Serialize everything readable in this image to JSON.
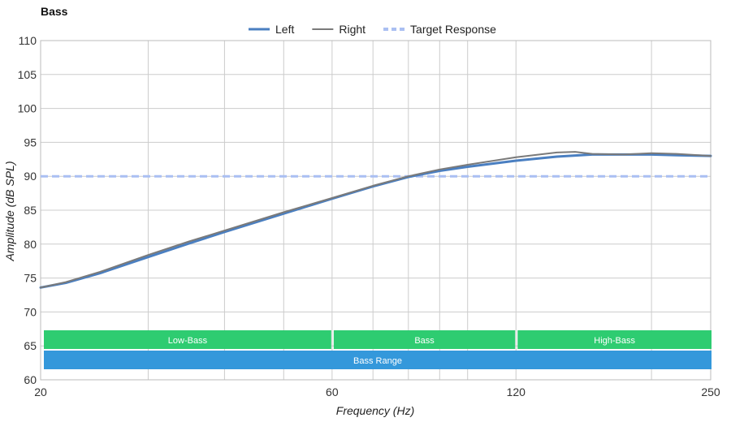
{
  "chart_data": {
    "type": "line",
    "title": "Bass",
    "xlabel": "Frequency (Hz)",
    "ylabel": "Amplitude (dB SPL)",
    "x_scale": "log",
    "xlim": [
      20,
      250
    ],
    "ylim": [
      60,
      110
    ],
    "x_ticks": [
      20,
      60,
      120,
      250
    ],
    "x_tick_labels": [
      "20",
      "60",
      "120",
      "250"
    ],
    "x_minor_gridlines": [
      30,
      40,
      50,
      70,
      80,
      90,
      100,
      200
    ],
    "y_ticks": [
      60,
      65,
      70,
      75,
      80,
      85,
      90,
      95,
      100,
      105,
      110
    ],
    "y_tick_labels": [
      "60",
      "65",
      "70",
      "75",
      "80",
      "85",
      "90",
      "95",
      "100",
      "105",
      "110"
    ],
    "grid": true,
    "legend_position": "top-center",
    "series": [
      {
        "name": "Left",
        "color": "#4a7fc1",
        "style": "solid-thick",
        "x": [
          20,
          22,
          25,
          30,
          35,
          40,
          50,
          60,
          70,
          80,
          90,
          100,
          120,
          140,
          160,
          180,
          200,
          220,
          250
        ],
        "y": [
          73.6,
          74.3,
          75.7,
          78.1,
          80.1,
          81.8,
          84.5,
          86.7,
          88.5,
          89.9,
          90.8,
          91.4,
          92.3,
          92.9,
          93.2,
          93.2,
          93.2,
          93.1,
          93.0
        ]
      },
      {
        "name": "Right",
        "color": "#7a7a7a",
        "style": "solid",
        "x": [
          20,
          22,
          25,
          30,
          35,
          40,
          50,
          60,
          70,
          80,
          90,
          100,
          120,
          140,
          150,
          160,
          180,
          200,
          220,
          250
        ],
        "y": [
          73.6,
          74.4,
          75.9,
          78.4,
          80.4,
          82.0,
          84.7,
          86.8,
          88.6,
          90.0,
          91.0,
          91.7,
          92.8,
          93.5,
          93.6,
          93.3,
          93.2,
          93.4,
          93.3,
          93.0
        ]
      },
      {
        "name": "Target Response",
        "color": "#aabff2",
        "style": "dashed",
        "x": [
          20,
          250
        ],
        "y": [
          90,
          90
        ]
      }
    ],
    "bands": [
      {
        "label": "Low-Bass",
        "x_start": 20,
        "x_end": 60,
        "color": "#2ecc71",
        "row": 1
      },
      {
        "label": "Bass",
        "x_start": 60,
        "x_end": 120,
        "color": "#2ecc71",
        "row": 1
      },
      {
        "label": "High-Bass",
        "x_start": 120,
        "x_end": 250,
        "color": "#2ecc71",
        "row": 1
      },
      {
        "label": "Bass Range",
        "x_start": 20,
        "x_end": 250,
        "color": "#3498db",
        "row": 2
      }
    ]
  }
}
